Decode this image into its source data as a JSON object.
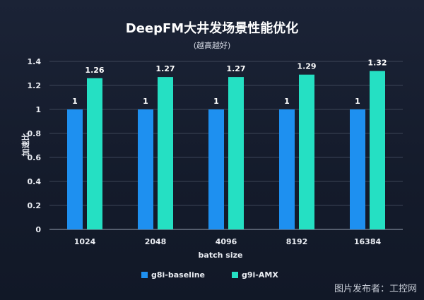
{
  "chart_data": {
    "type": "bar",
    "title": "DeepFM大井发场景性能优化",
    "subtitle": "(越高越好)",
    "xlabel": "batch size",
    "ylabel": "加速比",
    "ylim": [
      0,
      1.4
    ],
    "yticks": [
      "0",
      "0.2",
      "0.4",
      "0.6",
      "0.8",
      "1",
      "1.2",
      "1.4"
    ],
    "categories": [
      "1024",
      "2048",
      "4096",
      "8192",
      "16384"
    ],
    "series": [
      {
        "name": "g8i-baseline",
        "values": [
          1,
          1,
          1,
          1,
          1
        ],
        "labels": [
          "1",
          "1",
          "1",
          "1",
          "1"
        ],
        "color": "#1e90f0"
      },
      {
        "name": "g9i-AMX",
        "values": [
          1.26,
          1.27,
          1.27,
          1.29,
          1.32
        ],
        "labels": [
          "1.26",
          "1.27",
          "1.27",
          "1.29",
          "1.32"
        ],
        "color": "#25e0c3"
      }
    ],
    "grid": true,
    "legend_position": "bottom"
  },
  "watermark": "图片发布者：工控网"
}
